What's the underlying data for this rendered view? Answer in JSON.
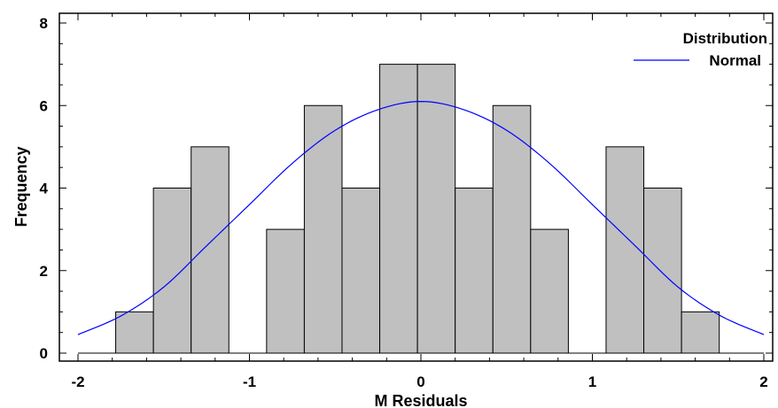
{
  "chart_data": {
    "type": "bar",
    "xlabel": "M Residuals",
    "ylabel": "Frequency",
    "xlim": [
      -2.0,
      2.0
    ],
    "ylim": [
      0,
      8
    ],
    "xticks": [
      -2,
      -1,
      0,
      1,
      2
    ],
    "yticks": [
      0,
      2,
      4,
      6,
      8
    ],
    "x_tick_labels": [
      "-2",
      "-1",
      "0",
      "1",
      "2"
    ],
    "y_tick_labels": [
      "0",
      "2",
      "4",
      "6",
      "8"
    ],
    "grid": false,
    "legend_position": "top-right",
    "legend": {
      "title": "Distribution",
      "entries": [
        "Normal"
      ]
    },
    "histogram": {
      "bin_edges": [
        -1.78,
        -1.56,
        -1.34,
        -1.12,
        -0.9,
        -0.68,
        -0.46,
        -0.24,
        -0.02,
        0.2,
        0.42,
        0.64,
        0.86,
        1.08,
        1.3,
        1.52,
        1.74,
        1.96
      ],
      "counts": [
        1,
        4,
        5,
        0,
        3,
        6,
        4,
        7,
        7,
        4,
        6,
        3,
        0,
        5,
        4,
        1,
        0
      ],
      "bar_color": "#c0c0c0",
      "edge_color": "#000000"
    },
    "curve": {
      "name": "Normal",
      "color": "#0000ff",
      "x": [
        -2.0,
        -1.75,
        -1.5,
        -1.25,
        -1.0,
        -0.75,
        -0.5,
        -0.25,
        0.0,
        0.25,
        0.5,
        0.75,
        1.0,
        1.25,
        1.5,
        1.75,
        2.0
      ],
      "y": [
        0.45,
        0.9,
        1.6,
        2.6,
        3.6,
        4.6,
        5.4,
        5.9,
        6.1,
        5.9,
        5.4,
        4.6,
        3.6,
        2.6,
        1.6,
        0.9,
        0.45
      ]
    }
  }
}
